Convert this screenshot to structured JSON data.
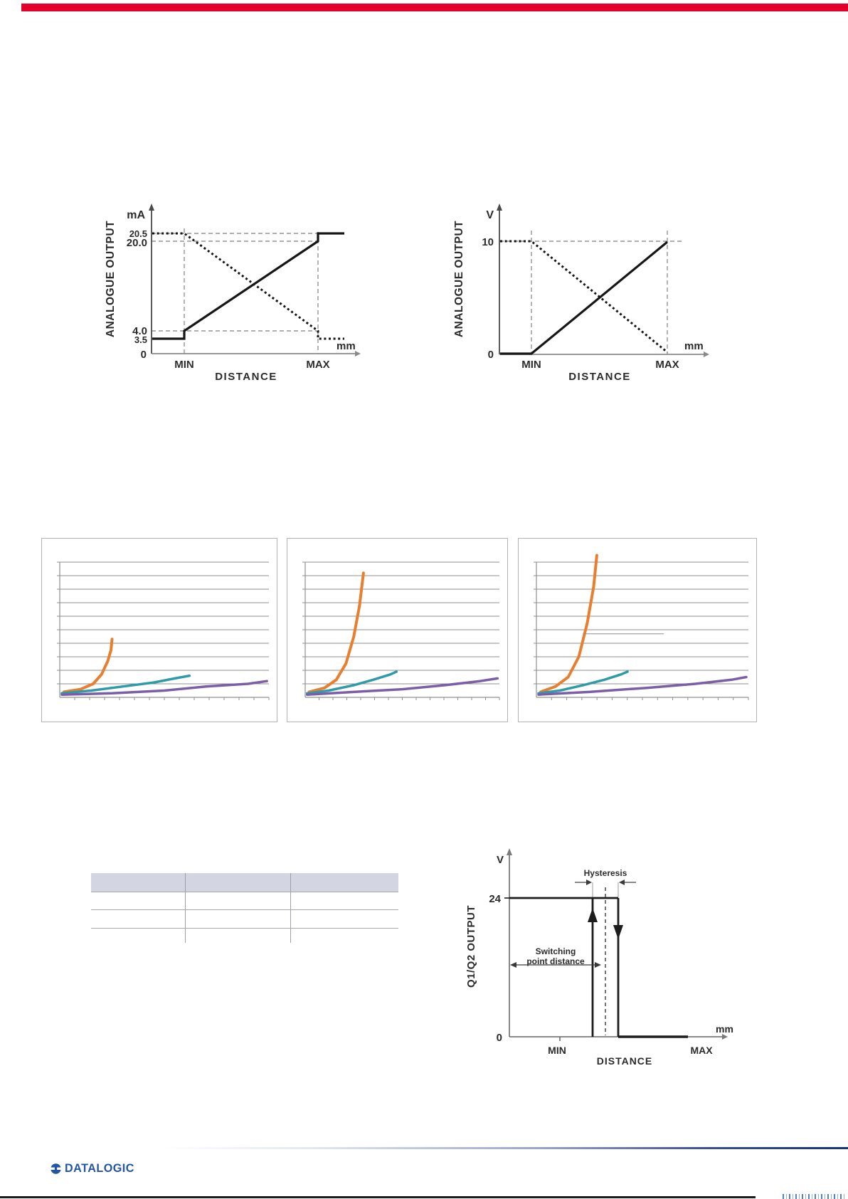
{
  "top_bar": {
    "color": "#e4002b"
  },
  "chart_data": [
    {
      "type": "line",
      "name": "analogue-output-current",
      "ylabel": "ANALOGUE OUTPUT",
      "y_unit": "mA",
      "x_unit": "mm",
      "xlabel": "DISTANCE",
      "x_ticks": [
        "MIN",
        "MAX"
      ],
      "y_ticks": [
        "20.5",
        "20.0",
        "4.0",
        "3.5",
        "0"
      ],
      "grid": "dashed guides at 20.5, 20.0 and 4.0 levels and at MIN / MAX distances",
      "series": [
        {
          "name": "rising-output",
          "style": "solid",
          "points": [
            [
              "left-of-MIN",
              3.5
            ],
            [
              "MIN",
              3.5
            ],
            [
              "MIN",
              4.0
            ],
            [
              "MAX",
              20.0
            ],
            [
              "MAX",
              20.5
            ],
            [
              "right-of-MAX",
              20.5
            ]
          ]
        },
        {
          "name": "falling-output",
          "style": "dotted",
          "points": [
            [
              "left-of-MIN",
              20.5
            ],
            [
              "MIN",
              20.5
            ],
            [
              "MAX",
              4.0
            ],
            [
              "MAX",
              3.5
            ],
            [
              "right-of-MAX",
              3.5
            ]
          ]
        }
      ]
    },
    {
      "type": "line",
      "name": "analogue-output-voltage",
      "ylabel": "ANALOGUE OUTPUT",
      "y_unit": "V",
      "x_unit": "mm",
      "xlabel": "DISTANCE",
      "x_ticks": [
        "MIN",
        "MAX"
      ],
      "y_ticks": [
        "10",
        "0"
      ],
      "grid": "dashed guide at 10 level and at MIN / MAX distances",
      "series": [
        {
          "name": "rising-output",
          "style": "solid",
          "points": [
            [
              "left-of-MIN",
              0
            ],
            [
              "MIN",
              0
            ],
            [
              "MAX",
              10
            ]
          ]
        },
        {
          "name": "falling-output",
          "style": "dotted",
          "points": [
            [
              "left-of-MIN",
              10
            ],
            [
              "MIN",
              10
            ],
            [
              "MAX",
              0
            ]
          ]
        }
      ]
    },
    {
      "type": "line",
      "name": "response-curves-1",
      "title": "",
      "xlabel": "",
      "ylabel": "",
      "x_range": [
        0,
        1
      ],
      "y_range": [
        0,
        1
      ],
      "legend_visible": false,
      "tick_labels_visible": false,
      "series": [
        {
          "name": "series-orange",
          "color": "#e87f2f",
          "width": 4,
          "points": [
            [
              0.02,
              0.04
            ],
            [
              0.1,
              0.06
            ],
            [
              0.16,
              0.1
            ],
            [
              0.2,
              0.17
            ],
            [
              0.23,
              0.27
            ],
            [
              0.245,
              0.35
            ],
            [
              0.25,
              0.43
            ]
          ]
        },
        {
          "name": "series-teal",
          "color": "#2f9aa8",
          "width": 3.5,
          "points": [
            [
              0.01,
              0.03
            ],
            [
              0.15,
              0.05
            ],
            [
              0.3,
              0.08
            ],
            [
              0.45,
              0.11
            ],
            [
              0.55,
              0.14
            ],
            [
              0.62,
              0.16
            ]
          ]
        },
        {
          "name": "series-purple",
          "color": "#7b5ea7",
          "width": 3.5,
          "points": [
            [
              0.01,
              0.02
            ],
            [
              0.25,
              0.03
            ],
            [
              0.5,
              0.05
            ],
            [
              0.7,
              0.08
            ],
            [
              0.9,
              0.1
            ],
            [
              0.99,
              0.12
            ]
          ]
        }
      ]
    },
    {
      "type": "line",
      "name": "response-curves-2",
      "title": "",
      "xlabel": "",
      "ylabel": "",
      "x_range": [
        0,
        1
      ],
      "y_range": [
        0,
        1
      ],
      "legend_visible": false,
      "tick_labels_visible": false,
      "series": [
        {
          "name": "series-orange",
          "color": "#e87f2f",
          "width": 4,
          "points": [
            [
              0.02,
              0.04
            ],
            [
              0.1,
              0.07
            ],
            [
              0.16,
              0.13
            ],
            [
              0.21,
              0.25
            ],
            [
              0.25,
              0.45
            ],
            [
              0.28,
              0.68
            ],
            [
              0.3,
              0.92
            ]
          ]
        },
        {
          "name": "series-teal",
          "color": "#2f9aa8",
          "width": 3.5,
          "points": [
            [
              0.01,
              0.03
            ],
            [
              0.12,
              0.05
            ],
            [
              0.25,
              0.09
            ],
            [
              0.35,
              0.13
            ],
            [
              0.44,
              0.17
            ],
            [
              0.47,
              0.19
            ]
          ]
        },
        {
          "name": "series-purple",
          "color": "#7b5ea7",
          "width": 3.5,
          "points": [
            [
              0.01,
              0.02
            ],
            [
              0.25,
              0.04
            ],
            [
              0.5,
              0.06
            ],
            [
              0.72,
              0.09
            ],
            [
              0.9,
              0.12
            ],
            [
              0.99,
              0.14
            ]
          ]
        }
      ]
    },
    {
      "type": "line",
      "name": "response-curves-3",
      "title": "",
      "xlabel": "",
      "ylabel": "",
      "x_range": [
        0,
        1
      ],
      "y_range": [
        0,
        1
      ],
      "legend_visible": false,
      "tick_labels_visible": false,
      "series": [
        {
          "name": "series-orange",
          "color": "#e87f2f",
          "width": 4,
          "points": [
            [
              0.02,
              0.04
            ],
            [
              0.09,
              0.08
            ],
            [
              0.15,
              0.15
            ],
            [
              0.2,
              0.3
            ],
            [
              0.24,
              0.55
            ],
            [
              0.27,
              0.82
            ],
            [
              0.285,
              1.05
            ]
          ]
        },
        {
          "name": "series-teal",
          "color": "#2f9aa8",
          "width": 3.5,
          "points": [
            [
              0.01,
              0.03
            ],
            [
              0.11,
              0.05
            ],
            [
              0.22,
              0.09
            ],
            [
              0.32,
              0.13
            ],
            [
              0.4,
              0.17
            ],
            [
              0.43,
              0.19
            ]
          ]
        },
        {
          "name": "series-purple",
          "color": "#7b5ea7",
          "width": 3.5,
          "points": [
            [
              0.01,
              0.02
            ],
            [
              0.25,
              0.04
            ],
            [
              0.52,
              0.07
            ],
            [
              0.75,
              0.1
            ],
            [
              0.92,
              0.13
            ],
            [
              0.99,
              0.15
            ]
          ]
        },
        {
          "name": "grid-fragment",
          "color": "#8f8f8f",
          "width": 1,
          "points": [
            [
              0.22,
              0.47
            ],
            [
              0.6,
              0.47
            ]
          ]
        }
      ]
    },
    {
      "type": "step",
      "name": "q1-q2-switching-output",
      "ylabel": "Q1/Q2 OUTPUT",
      "y_unit": "V",
      "x_unit": "mm",
      "xlabel": "DISTANCE",
      "y_ticks": [
        "24",
        "0"
      ],
      "x_ticks": [
        "MIN",
        "MAX"
      ],
      "annotations": {
        "hysteresis": "Hysteresis",
        "switching_1": "Switching",
        "switching_2": "point distance"
      },
      "series": [
        {
          "name": "output-state",
          "description": "Output at 24 V from axis to switch-on point; rising edge (up arrow) and falling edge (down arrow) separated by hysteresis band around dashed switching point; 0 V beyond"
        }
      ]
    }
  ],
  "table": {
    "columns": [
      "",
      "",
      ""
    ],
    "rows": [
      [
        "",
        "",
        ""
      ],
      [
        "",
        "",
        ""
      ],
      [
        "",
        "",
        ""
      ]
    ],
    "header_fill": "#d3d6e2"
  },
  "footer": {
    "logo_text": "DATALOGIC",
    "logo_color": "#2455a4",
    "cropped_text_color": "#3a6bc4"
  }
}
